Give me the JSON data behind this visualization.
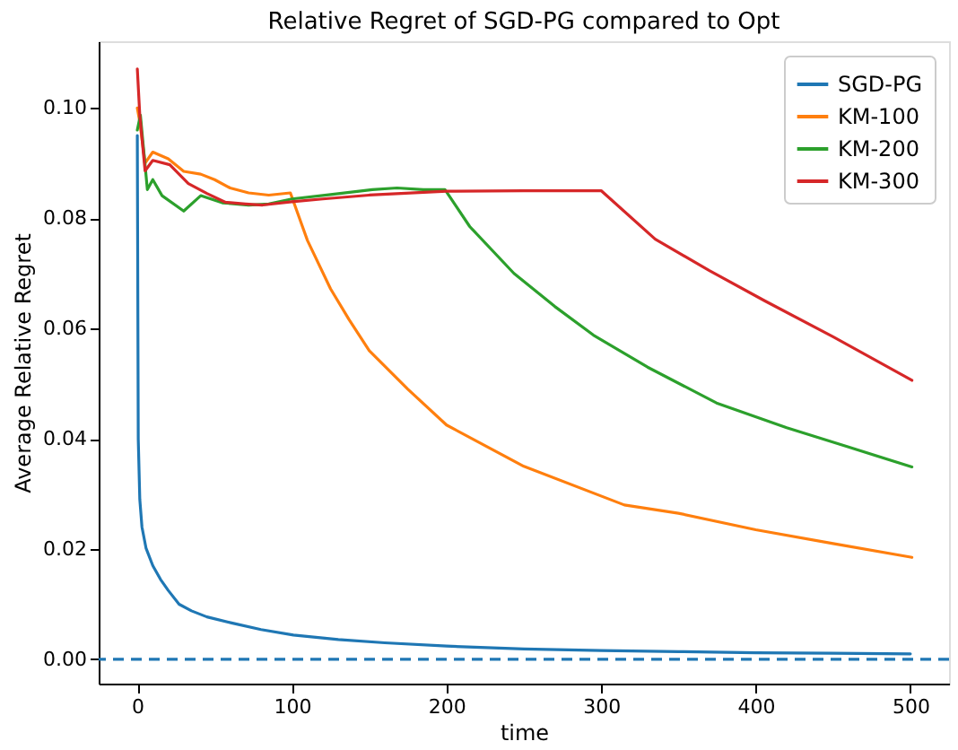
{
  "chart_data": {
    "type": "line",
    "title": "Relative Regret of SGD-PG compared to Opt",
    "xlabel": "time",
    "ylabel": "Average Relative Regret",
    "xlim": [
      -25,
      525
    ],
    "xticks": [
      0,
      100,
      200,
      300,
      400,
      500
    ],
    "ylim": [
      -0.0044,
      0.1121
    ],
    "yticks": [
      {
        "value": 0,
        "label": "0.00"
      },
      {
        "value": 0.02,
        "label": "0.02"
      },
      {
        "value": 0.04,
        "label": "0.04"
      },
      {
        "value": 0.06,
        "label": "0.06"
      },
      {
        "value": 0.08,
        "label": "0.08"
      },
      {
        "value": 0.1,
        "label": "0.10"
      }
    ],
    "legend": "top right",
    "grid": false,
    "marker": "none",
    "line_style": "solid",
    "ref_lines": [
      {
        "axis": "y",
        "value": 0,
        "color": "#1f77b4",
        "line_style": "dashed"
      }
    ],
    "series": [
      {
        "name": "SGD-PG",
        "color": "#1f77b4",
        "x": [
          0,
          0.6,
          1.6,
          3,
          5.6,
          10,
          15,
          20,
          27,
          35,
          45,
          61,
          80,
          101,
          130,
          160,
          200,
          250,
          300,
          350,
          400,
          450,
          500
        ],
        "values": [
          0.095,
          0.04,
          0.029,
          0.024,
          0.0202,
          0.017,
          0.0145,
          0.0125,
          0.01,
          0.0088,
          0.0077,
          0.0066,
          0.0054,
          0.0044,
          0.0036,
          0.003,
          0.0024,
          0.0019,
          0.0016,
          0.0014,
          0.0012,
          0.0011,
          0.001
        ]
      },
      {
        "name": "KM-100",
        "color": "#ff7f0e",
        "x": [
          0,
          1.6,
          5,
          10,
          20,
          30,
          41,
          50,
          60,
          72,
          85,
          99,
          110,
          125,
          137,
          150,
          175,
          200,
          250,
          315,
          350,
          400,
          450,
          501
        ],
        "values": [
          0.1,
          0.0975,
          0.09,
          0.092,
          0.0908,
          0.0885,
          0.088,
          0.087,
          0.0855,
          0.0846,
          0.0842,
          0.0846,
          0.076,
          0.0672,
          0.0616,
          0.056,
          0.049,
          0.0425,
          0.035,
          0.028,
          0.0265,
          0.0235,
          0.021,
          0.0185
        ]
      },
      {
        "name": "KM-200",
        "color": "#2ca02c",
        "x": [
          0,
          2,
          6.5,
          10,
          16,
          30,
          41,
          55,
          72,
          85,
          100,
          125,
          152,
          168,
          185,
          199,
          215,
          243.6,
          270,
          295,
          330,
          374.6,
          420,
          460,
          501
        ],
        "values": [
          0.096,
          0.0987,
          0.0852,
          0.087,
          0.0841,
          0.0813,
          0.0841,
          0.0828,
          0.0824,
          0.0826,
          0.0835,
          0.0843,
          0.0852,
          0.0855,
          0.0852,
          0.0852,
          0.0785,
          0.07,
          0.064,
          0.0588,
          0.053,
          0.0465,
          0.042,
          0.0385,
          0.0349
        ]
      },
      {
        "name": "KM-300",
        "color": "#d62728",
        "x": [
          0,
          1.6,
          5,
          10,
          21,
          33,
          45,
          57,
          70,
          81,
          100,
          120,
          150,
          200,
          250,
          300,
          335,
          370,
          406,
          450,
          501
        ],
        "values": [
          0.1071,
          0.0987,
          0.0886,
          0.0905,
          0.0897,
          0.0863,
          0.0845,
          0.0829,
          0.0826,
          0.0824,
          0.083,
          0.0835,
          0.0842,
          0.0849,
          0.085,
          0.085,
          0.0762,
          0.0705,
          0.065,
          0.0585,
          0.0506
        ]
      }
    ]
  }
}
